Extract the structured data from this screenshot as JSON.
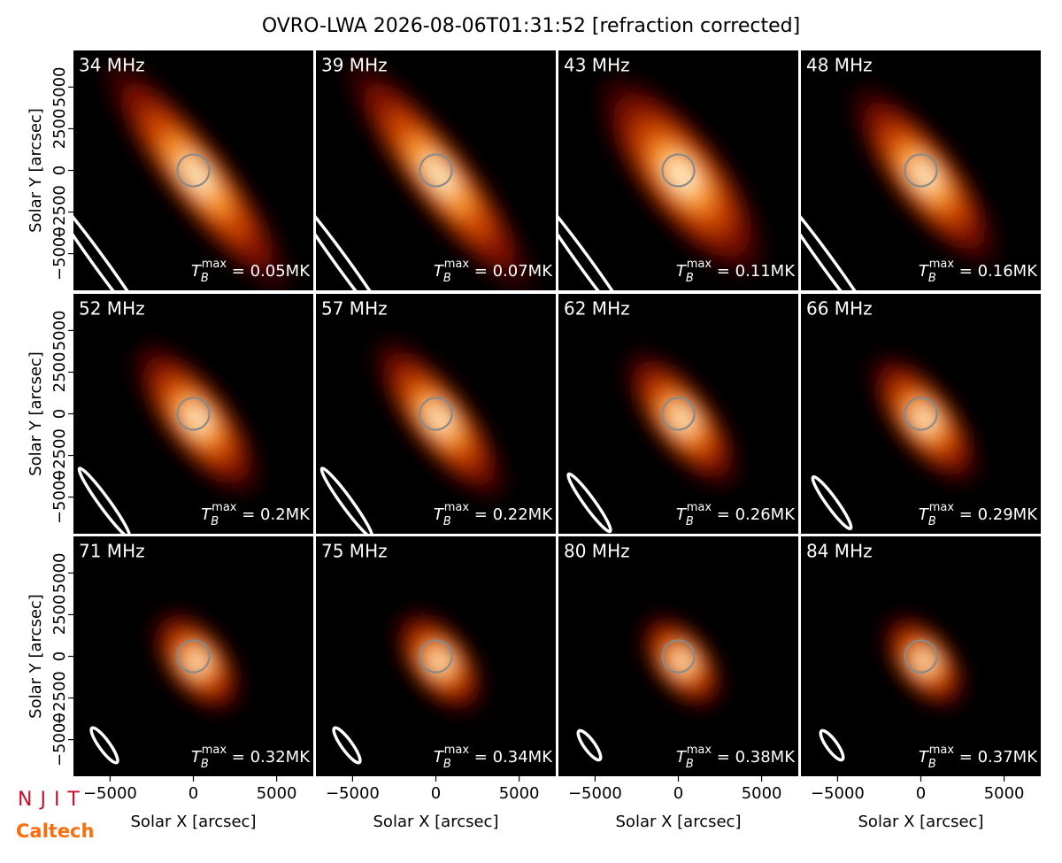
{
  "chart_data": {
    "type": "heatmap",
    "title": "OVRO-LWA 2026-08-06T01:31:52 [refraction corrected]",
    "xlabel": "Solar X [arcsec]",
    "ylabel": "Solar Y [arcsec]",
    "xlim": [
      -7200,
      7200
    ],
    "ylim": [
      -7200,
      7200
    ],
    "xticks": [
      {
        "value": -5000,
        "label": "−5000"
      },
      0,
      5000
    ],
    "yticks": [
      {
        "value": -5000,
        "label": "−5000"
      },
      {
        "value": -2500,
        "label": "−2500"
      },
      0,
      2500,
      5000
    ],
    "tb_symbol": "T",
    "tb_sub": "B",
    "tb_sup": "max",
    "panels": [
      {
        "label": "34 MHz",
        "value": 0.05,
        "value_label": " = 0.05MK"
      },
      {
        "label": "39 MHz",
        "value": 0.07,
        "value_label": " = 0.07MK"
      },
      {
        "label": "43 MHz",
        "value": 0.11,
        "value_label": " = 0.11MK"
      },
      {
        "label": "48 MHz",
        "value": 0.16,
        "value_label": " = 0.16MK"
      },
      {
        "label": "52 MHz",
        "value": 0.2,
        "value_label": " = 0.2MK"
      },
      {
        "label": "57 MHz",
        "value": 0.22,
        "value_label": " = 0.22MK"
      },
      {
        "label": "62 MHz",
        "value": 0.26,
        "value_label": " = 0.26MK"
      },
      {
        "label": "66 MHz",
        "value": 0.29,
        "value_label": " = 0.29MK"
      },
      {
        "label": "71 MHz",
        "value": 0.32,
        "value_label": " = 0.32MK"
      },
      {
        "label": "75 MHz",
        "value": 0.34,
        "value_label": " = 0.34MK"
      },
      {
        "label": "80 MHz",
        "value": 0.38,
        "value_label": " = 0.38MK"
      },
      {
        "label": "84 MHz",
        "value": 0.37,
        "value_label": " = 0.37MK"
      }
    ]
  },
  "logos": [
    "NJIT",
    "Caltech"
  ]
}
